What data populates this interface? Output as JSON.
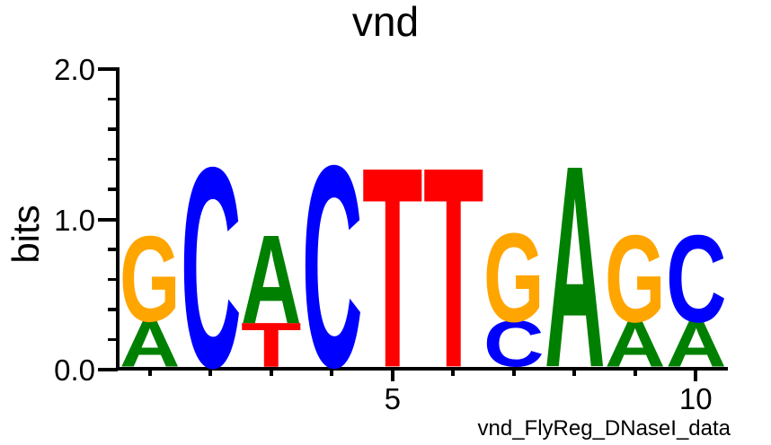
{
  "figure": {
    "title": "vnd",
    "dataset_note": "vnd_FlyReg_DNaseI_data"
  },
  "y_axis": {
    "label": "bits",
    "range": [
      0.0,
      2.0
    ],
    "ticks_major": [
      {
        "value": 0.0,
        "label": "0.0"
      },
      {
        "value": 1.0,
        "label": "1.0"
      },
      {
        "value": 2.0,
        "label": "2.0"
      }
    ],
    "minor_tick_values": [
      0.2,
      0.4,
      0.6,
      0.8,
      1.2,
      1.4,
      1.6,
      1.8
    ]
  },
  "x_axis": {
    "tick_positions": [
      1,
      2,
      3,
      4,
      5,
      6,
      7,
      8,
      9,
      10
    ],
    "labeled_ticks": [
      {
        "position": 5,
        "label": "5"
      },
      {
        "position": 10,
        "label": "10"
      }
    ]
  },
  "colors": {
    "A": "#008000",
    "C": "#0000FF",
    "G": "#FFA500",
    "T": "#FF0000"
  },
  "chart_data": {
    "type": "sequence_logo",
    "unit": "bits",
    "ylim": [
      0,
      2
    ],
    "title": "vnd",
    "ylabel": "bits",
    "consensus": "GCACTTGAGC",
    "stacks": [
      {
        "position": 1,
        "letters": [
          {
            "base": "A",
            "bits": 0.3
          },
          {
            "base": "G",
            "bits": 0.56
          }
        ]
      },
      {
        "position": 2,
        "letters": [
          {
            "base": "C",
            "bits": 1.31
          }
        ]
      },
      {
        "position": 3,
        "letters": [
          {
            "base": "T",
            "bits": 0.29
          },
          {
            "base": "A",
            "bits": 0.58
          }
        ]
      },
      {
        "position": 4,
        "letters": [
          {
            "base": "C",
            "bits": 1.32
          }
        ]
      },
      {
        "position": 5,
        "letters": [
          {
            "base": "T",
            "bits": 1.31
          }
        ]
      },
      {
        "position": 6,
        "letters": [
          {
            "base": "T",
            "bits": 1.31
          }
        ]
      },
      {
        "position": 7,
        "letters": [
          {
            "base": "C",
            "bits": 0.3
          },
          {
            "base": "G",
            "bits": 0.58
          }
        ]
      },
      {
        "position": 8,
        "letters": [
          {
            "base": "A",
            "bits": 1.32
          }
        ]
      },
      {
        "position": 9,
        "letters": [
          {
            "base": "A",
            "bits": 0.3
          },
          {
            "base": "G",
            "bits": 0.57
          }
        ]
      },
      {
        "position": 10,
        "letters": [
          {
            "base": "A",
            "bits": 0.3
          },
          {
            "base": "C",
            "bits": 0.57
          }
        ]
      }
    ]
  }
}
